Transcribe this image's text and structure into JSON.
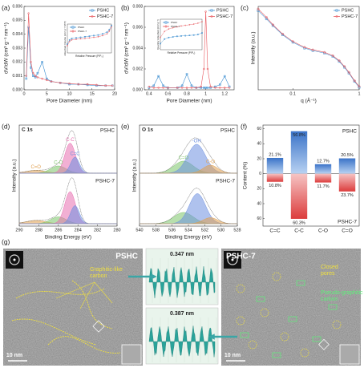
{
  "panels": [
    {
      "label": "(a)",
      "type": "line",
      "xlabel": "Pore Diameter (nm)",
      "ylabel": "dV/dW (cm³ g⁻¹ nm⁻¹)",
      "xlim": [
        0,
        20
      ],
      "xticks": [
        0,
        5,
        10,
        15,
        20
      ],
      "ylim": [
        0,
        0.006
      ],
      "yticks": [
        {
          "value": 0,
          "label": "0.000"
        },
        0.001,
        0.002,
        0.003,
        0.004,
        0.005,
        0.006
      ],
      "x": [
        0.5,
        1,
        1.5,
        2,
        2.5,
        3,
        4,
        5,
        6,
        8,
        10,
        12,
        14,
        16,
        18,
        19.5
      ],
      "series": [
        {
          "name": "PSHC",
          "color": "#3d8fd1",
          "values": [
            0.0008,
            0.0045,
            0.0016,
            0.001,
            0.0009,
            0.0012,
            0.002,
            0.0008,
            0.0006,
            0.0005,
            0.0004,
            0.0004,
            0.00035,
            0.0003,
            0.0003,
            0.0003
          ]
        },
        {
          "name": "PSHC-7",
          "color": "#e8585e",
          "values": [
            0.001,
            0.0055,
            0.002,
            0.0012,
            0.001,
            0.0009,
            0.0008,
            0.0007,
            0.0006,
            0.0005,
            0.00045,
            0.0004,
            0.0004,
            0.00035,
            0.0003,
            0.0003
          ]
        }
      ],
      "inset": {
        "xlabel": "Relative Pressure (P/P₀)",
        "ylabel": "Adsorbed Volume (cm³ g⁻¹ STP)",
        "xlim": [
          0,
          1
        ],
        "ylim": [
          0,
          1
        ],
        "x": [
          0,
          0.05,
          0.1,
          0.2,
          0.3,
          0.4,
          0.5,
          0.6,
          0.7,
          0.8,
          0.9,
          0.95,
          1
        ],
        "series": [
          {
            "name": "PSHC",
            "color": "#3d8fd1",
            "values": [
              0.3,
              0.45,
              0.5,
              0.52,
              0.54,
              0.56,
              0.58,
              0.6,
              0.62,
              0.66,
              0.72,
              0.8,
              0.95
            ]
          },
          {
            "name": "PSHC-7",
            "color": "#e8585e",
            "values": [
              0.25,
              0.4,
              0.45,
              0.47,
              0.49,
              0.5,
              0.52,
              0.54,
              0.56,
              0.6,
              0.66,
              0.75,
              0.9
            ]
          }
        ]
      }
    },
    {
      "label": "(b)",
      "type": "line",
      "xlabel": "Pore Diameter (nm)",
      "ylabel": "dV/dW (cm³ g⁻¹ nm⁻¹)",
      "xlim": [
        0.35,
        1.3
      ],
      "xticks": [
        0.4,
        0.6,
        0.8,
        1.0,
        1.2
      ],
      "ylim": [
        0,
        0.008
      ],
      "yticks": [
        {
          "value": 0,
          "label": "0.000"
        },
        0.002,
        0.004,
        0.006,
        0.008
      ],
      "x": [
        0.4,
        0.45,
        0.5,
        0.55,
        0.6,
        0.7,
        0.75,
        0.8,
        0.85,
        0.9,
        0.95,
        0.98,
        1.0,
        1.02,
        1.05,
        1.1,
        1.15,
        1.2,
        1.25
      ],
      "series": [
        {
          "name": "PSHC",
          "color": "#3d8fd1",
          "values": [
            0.0002,
            0.0004,
            0.0013,
            0.0004,
            0.0002,
            0.0002,
            0.0004,
            0.0015,
            0.0004,
            0.0002,
            0.0002,
            0.0002,
            0.0002,
            0.0002,
            0.0002,
            0.0003,
            0.0005,
            0.0013,
            0.0003
          ]
        },
        {
          "name": "PSHC-7",
          "color": "#e8585e",
          "values": [
            0.0003,
            0.0002,
            0.0002,
            0.0002,
            0.0002,
            0.0002,
            0.0002,
            0.0002,
            0.0002,
            0.0002,
            0.0003,
            0.002,
            0.0075,
            0.002,
            0.0003,
            0.0002,
            0.0002,
            0.0002,
            0.0002
          ]
        }
      ],
      "inset": {
        "xlabel": "Relative Pressure (P/P₀)",
        "ylabel": "Quantity Adsorbed (cm³ g⁻¹)",
        "xlim": [
          0,
          1
        ],
        "ylim": [
          0,
          1
        ],
        "x": [
          0,
          0.1,
          0.2,
          0.3,
          0.4,
          0.5,
          0.6,
          0.7,
          0.8,
          0.9,
          1
        ],
        "series": [
          {
            "name": "PSHC",
            "color": "#3d8fd1",
            "values": [
              0.2,
              0.35,
              0.4,
              0.42,
              0.44,
              0.45,
              0.46,
              0.47,
              0.48,
              0.5,
              0.55
            ]
          },
          {
            "name": "PSHC-7",
            "color": "#e8585e",
            "values": [
              0.4,
              0.6,
              0.68,
              0.72,
              0.75,
              0.78,
              0.8,
              0.82,
              0.84,
              0.87,
              0.92
            ]
          }
        ]
      }
    },
    {
      "label": "(c)",
      "type": "line",
      "log_x": true,
      "xlabel": "q (Å⁻¹)",
      "ylabel": "Intensity (a.u.)",
      "xlim": [
        0.03,
        1
      ],
      "xticks": [
        0.1,
        1
      ],
      "ylim": [
        0,
        1
      ],
      "x": [
        0.03,
        0.04,
        0.05,
        0.07,
        0.1,
        0.15,
        0.2,
        0.3,
        0.4,
        0.5,
        0.6,
        0.7,
        0.85,
        1
      ],
      "series": [
        {
          "name": "PSHC",
          "color": "#3d8fd1",
          "values": [
            0.95,
            0.85,
            0.77,
            0.66,
            0.57,
            0.5,
            0.47,
            0.44,
            0.4,
            0.34,
            0.27,
            0.2,
            0.1,
            0.03
          ]
        },
        {
          "name": "PSHC-7",
          "color": "#e8585e",
          "values": [
            0.97,
            0.87,
            0.78,
            0.67,
            0.58,
            0.51,
            0.48,
            0.45,
            0.41,
            0.35,
            0.28,
            0.21,
            0.11,
            0.04
          ]
        }
      ]
    },
    {
      "label": "(d)",
      "type": "xps",
      "title": "C 1s",
      "xlabel": "Binding Energy (eV)",
      "ylabel": "Intensity (a.u.)",
      "xlim": [
        290,
        280
      ],
      "xticks": [
        290,
        288,
        286,
        284,
        282,
        280
      ],
      "ylim": [
        0,
        1
      ],
      "spectra": [
        {
          "name": "PSHC",
          "components": [
            {
              "label": "C=O",
              "color": "#e0a050",
              "center": 288.3,
              "height": 0.07,
              "width": 1.0
            },
            {
              "label": "C-O",
              "color": "#7cc46a",
              "center": 286.0,
              "height": 0.18,
              "width": 0.8
            },
            {
              "label": "C-C",
              "color": "#e870b0",
              "center": 284.8,
              "height": 0.75,
              "width": 0.55
            },
            {
              "label": "C=C",
              "color": "#6d8fe0",
              "center": 284.3,
              "height": 0.4,
              "width": 0.45
            }
          ]
        },
        {
          "name": "PSHC-7",
          "components": [
            {
              "color": "#e0a050",
              "center": 288.3,
              "height": 0.08,
              "width": 1.0
            },
            {
              "color": "#7cc46a",
              "center": 286.0,
              "height": 0.17,
              "width": 0.8
            },
            {
              "color": "#e870b0",
              "center": 284.8,
              "height": 0.8,
              "width": 0.55
            },
            {
              "color": "#6d8fe0",
              "center": 284.3,
              "height": 0.45,
              "width": 0.45
            }
          ]
        }
      ]
    },
    {
      "label": "(e)",
      "type": "xps",
      "title": "O 1s",
      "xlabel": "Binding Energy (eV)",
      "ylabel": "Intensity (a.u.)",
      "xlim": [
        540,
        528
      ],
      "xticks": [
        540,
        538,
        536,
        534,
        532,
        530,
        528
      ],
      "ylim": [
        0,
        1
      ],
      "spectra": [
        {
          "name": "PSHC",
          "components": [
            {
              "label": "C=O",
              "color": "#7cc46a",
              "center": 534.6,
              "height": 0.3,
              "width": 1.2
            },
            {
              "label": "-OH",
              "color": "#6d8fe0",
              "center": 533.0,
              "height": 0.72,
              "width": 1.1
            },
            {
              "label": "C-O",
              "color": "#e0a050",
              "center": 531.3,
              "height": 0.2,
              "width": 0.9
            }
          ]
        },
        {
          "name": "PSHC-7",
          "components": [
            {
              "color": "#7cc46a",
              "center": 534.6,
              "height": 0.28,
              "width": 1.2
            },
            {
              "color": "#6d8fe0",
              "center": 532.9,
              "height": 0.75,
              "width": 1.0
            },
            {
              "color": "#e0a050",
              "center": 531.3,
              "height": 0.15,
              "width": 0.9
            }
          ]
        }
      ]
    },
    {
      "label": "(f)",
      "type": "diverging_bar",
      "ylabel": "Content (%)",
      "categories": [
        "C=C",
        "C-C",
        "C-O",
        "C=O"
      ],
      "ylim": [
        -70,
        65
      ],
      "yticks": [
        60,
        40,
        20,
        0,
        {
          "value": -20,
          "label": "20"
        },
        {
          "value": -40,
          "label": "40"
        },
        {
          "value": -60,
          "label": "60"
        }
      ],
      "series": [
        {
          "name": "PSHC",
          "color": "#4f86d6",
          "values": [
            21.1,
            56.8,
            12.7,
            20.5
          ],
          "value_labels": [
            "21.1%",
            "56.8%",
            "12.7%",
            "20.5%"
          ]
        },
        {
          "name": "PSHC-7",
          "color": "#e65a5a",
          "values": [
            -10.8,
            -60.3,
            -11.7,
            -23.7
          ],
          "value_labels": [
            "10.8%",
            "60.3%",
            "11.7%",
            "23.7%"
          ]
        }
      ]
    },
    {
      "label": "(g)",
      "type": "tem",
      "left": {
        "title": "PSHC",
        "annotation": [
          "Graphitic-like",
          "carbon"
        ],
        "scale": "10 nm"
      },
      "profiles": [
        "0.347 nm",
        "0.387 nm"
      ],
      "right": {
        "title": "PSHC-7",
        "annotations": [
          [
            "Closed",
            "pores"
          ],
          [
            "Pseudo-graphitic",
            "carbon"
          ]
        ],
        "scale": "10 nm"
      }
    }
  ]
}
